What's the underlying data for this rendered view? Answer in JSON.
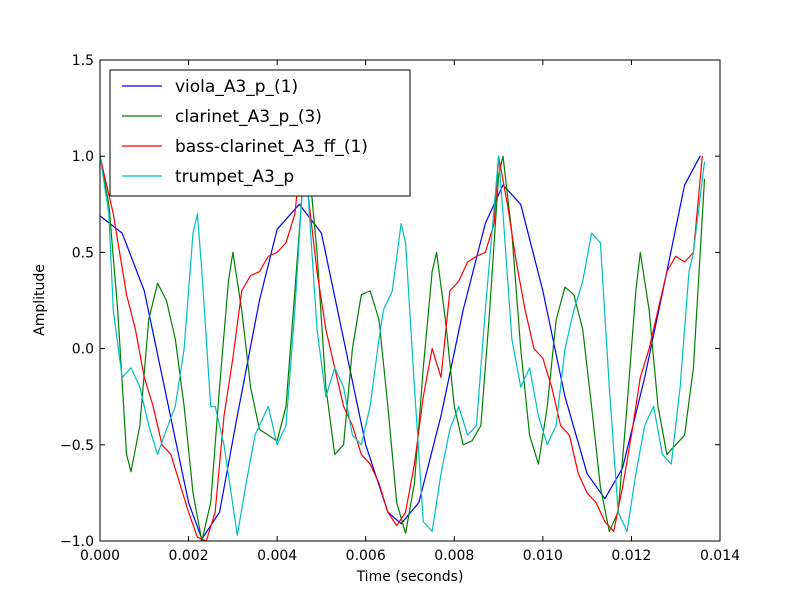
{
  "chart_data": {
    "type": "line",
    "title": "",
    "xlabel": "Time (seconds)",
    "ylabel": "Amplitude",
    "xlim": [
      0.0,
      0.014
    ],
    "ylim": [
      -1.0,
      1.5
    ],
    "xticks": [
      0.0,
      0.002,
      0.004,
      0.006,
      0.008,
      0.01,
      0.012,
      0.014
    ],
    "xtick_labels": [
      "0.000",
      "0.002",
      "0.004",
      "0.006",
      "0.008",
      "0.010",
      "0.012",
      "0.014"
    ],
    "yticks": [
      -1.0,
      -0.5,
      0.0,
      0.5,
      1.0,
      1.5
    ],
    "ytick_labels": [
      "−1.0",
      "−0.5",
      "0.0",
      "0.5",
      "1.0",
      "1.5"
    ],
    "grid": false,
    "legend_position": "top-left",
    "series": [
      {
        "name": "viola_A3_p_(1)",
        "color": "#0000ff",
        "points": [
          [
            0.0,
            0.69
          ],
          [
            0.0005,
            0.6
          ],
          [
            0.001,
            0.3
          ],
          [
            0.0015,
            -0.25
          ],
          [
            0.002,
            -0.8
          ],
          [
            0.0023,
            -0.99
          ],
          [
            0.0027,
            -0.85
          ],
          [
            0.0031,
            -0.35
          ],
          [
            0.0036,
            0.25
          ],
          [
            0.004,
            0.62
          ],
          [
            0.0045,
            0.75
          ],
          [
            0.005,
            0.6
          ],
          [
            0.0055,
            0.05
          ],
          [
            0.006,
            -0.5
          ],
          [
            0.0065,
            -0.85
          ],
          [
            0.0068,
            -0.91
          ],
          [
            0.0072,
            -0.8
          ],
          [
            0.0077,
            -0.35
          ],
          [
            0.0082,
            0.2
          ],
          [
            0.0087,
            0.65
          ],
          [
            0.0091,
            0.85
          ],
          [
            0.0095,
            0.75
          ],
          [
            0.01,
            0.3
          ],
          [
            0.0105,
            -0.25
          ],
          [
            0.011,
            -0.65
          ],
          [
            0.0114,
            -0.78
          ],
          [
            0.0118,
            -0.62
          ],
          [
            0.0123,
            -0.15
          ],
          [
            0.0128,
            0.4
          ],
          [
            0.0132,
            0.85
          ],
          [
            0.01355,
            1.0
          ]
        ]
      },
      {
        "name": "clarinet_A3_p_(3)",
        "color": "#008000",
        "points": [
          [
            0.0,
            1.0
          ],
          [
            0.0002,
            0.75
          ],
          [
            0.0004,
            0.2
          ],
          [
            0.0006,
            -0.55
          ],
          [
            0.0007,
            -0.64
          ],
          [
            0.0009,
            -0.4
          ],
          [
            0.0011,
            0.15
          ],
          [
            0.0013,
            0.34
          ],
          [
            0.0015,
            0.25
          ],
          [
            0.0017,
            0.05
          ],
          [
            0.0019,
            -0.3
          ],
          [
            0.0021,
            -0.75
          ],
          [
            0.0023,
            -1.0
          ],
          [
            0.0025,
            -0.8
          ],
          [
            0.0027,
            -0.2
          ],
          [
            0.0029,
            0.35
          ],
          [
            0.003,
            0.5
          ],
          [
            0.0032,
            0.2
          ],
          [
            0.0034,
            -0.2
          ],
          [
            0.0036,
            -0.42
          ],
          [
            0.0038,
            -0.45
          ],
          [
            0.004,
            -0.48
          ],
          [
            0.0042,
            -0.3
          ],
          [
            0.0044,
            0.3
          ],
          [
            0.0046,
            0.92
          ],
          [
            0.0047,
            1.0
          ],
          [
            0.0049,
            0.5
          ],
          [
            0.0051,
            -0.2
          ],
          [
            0.0053,
            -0.55
          ],
          [
            0.0055,
            -0.5
          ],
          [
            0.0057,
            0.0
          ],
          [
            0.0059,
            0.28
          ],
          [
            0.0061,
            0.3
          ],
          [
            0.0063,
            0.15
          ],
          [
            0.0065,
            -0.3
          ],
          [
            0.0067,
            -0.8
          ],
          [
            0.0069,
            -0.96
          ],
          [
            0.0071,
            -0.7
          ],
          [
            0.0073,
            -0.1
          ],
          [
            0.0075,
            0.4
          ],
          [
            0.0076,
            0.5
          ],
          [
            0.0078,
            0.15
          ],
          [
            0.008,
            -0.3
          ],
          [
            0.0082,
            -0.5
          ],
          [
            0.0084,
            -0.48
          ],
          [
            0.0086,
            -0.4
          ],
          [
            0.0088,
            0.2
          ],
          [
            0.009,
            0.9
          ],
          [
            0.0091,
            1.0
          ],
          [
            0.0093,
            0.6
          ],
          [
            0.0095,
            0.0
          ],
          [
            0.0097,
            -0.45
          ],
          [
            0.0099,
            -0.6
          ],
          [
            0.0101,
            -0.3
          ],
          [
            0.0103,
            0.15
          ],
          [
            0.0105,
            0.32
          ],
          [
            0.0107,
            0.28
          ],
          [
            0.0109,
            0.1
          ],
          [
            0.0111,
            -0.3
          ],
          [
            0.0113,
            -0.72
          ],
          [
            0.0115,
            -0.95
          ],
          [
            0.0117,
            -0.85
          ],
          [
            0.0119,
            -0.3
          ],
          [
            0.0121,
            0.3
          ],
          [
            0.0122,
            0.5
          ],
          [
            0.0124,
            0.2
          ],
          [
            0.0126,
            -0.3
          ],
          [
            0.0128,
            -0.55
          ],
          [
            0.013,
            -0.5
          ],
          [
            0.0132,
            -0.45
          ],
          [
            0.0134,
            -0.1
          ],
          [
            0.01365,
            0.88
          ]
        ]
      },
      {
        "name": "bass-clarinet_A3_ff_(1)",
        "color": "#ff0000",
        "points": [
          [
            0.0,
            1.0
          ],
          [
            0.0003,
            0.7
          ],
          [
            0.0006,
            0.28
          ],
          [
            0.0008,
            0.1
          ],
          [
            0.001,
            -0.15
          ],
          [
            0.0012,
            -0.3
          ],
          [
            0.0014,
            -0.5
          ],
          [
            0.0016,
            -0.55
          ],
          [
            0.0018,
            -0.7
          ],
          [
            0.002,
            -0.85
          ],
          [
            0.0022,
            -0.98
          ],
          [
            0.0024,
            -1.0
          ],
          [
            0.0026,
            -0.85
          ],
          [
            0.0028,
            -0.35
          ],
          [
            0.003,
            -0.05
          ],
          [
            0.0032,
            0.3
          ],
          [
            0.0034,
            0.38
          ],
          [
            0.0036,
            0.4
          ],
          [
            0.0038,
            0.48
          ],
          [
            0.004,
            0.5
          ],
          [
            0.0042,
            0.55
          ],
          [
            0.0044,
            0.7
          ],
          [
            0.0045,
            0.92
          ],
          [
            0.0047,
            0.8
          ],
          [
            0.0049,
            0.4
          ],
          [
            0.0051,
            0.1
          ],
          [
            0.0053,
            -0.1
          ],
          [
            0.0055,
            -0.3
          ],
          [
            0.0057,
            -0.4
          ],
          [
            0.0059,
            -0.55
          ],
          [
            0.0061,
            -0.6
          ],
          [
            0.0063,
            -0.7
          ],
          [
            0.0065,
            -0.85
          ],
          [
            0.0067,
            -0.92
          ],
          [
            0.0069,
            -0.85
          ],
          [
            0.0071,
            -0.6
          ],
          [
            0.0073,
            -0.25
          ],
          [
            0.0075,
            0.0
          ],
          [
            0.0077,
            -0.15
          ],
          [
            0.0079,
            0.3
          ],
          [
            0.0081,
            0.35
          ],
          [
            0.0083,
            0.45
          ],
          [
            0.0085,
            0.48
          ],
          [
            0.0087,
            0.5
          ],
          [
            0.0089,
            0.65
          ],
          [
            0.009,
            1.0
          ],
          [
            0.0092,
            0.75
          ],
          [
            0.0094,
            0.45
          ],
          [
            0.0096,
            0.2
          ],
          [
            0.0098,
            0.0
          ],
          [
            0.01,
            -0.05
          ],
          [
            0.0102,
            -0.2
          ],
          [
            0.0104,
            -0.4
          ],
          [
            0.0106,
            -0.45
          ],
          [
            0.0108,
            -0.65
          ],
          [
            0.011,
            -0.75
          ],
          [
            0.0112,
            -0.8
          ],
          [
            0.0114,
            -0.9
          ],
          [
            0.0116,
            -0.95
          ],
          [
            0.0118,
            -0.72
          ],
          [
            0.012,
            -0.45
          ],
          [
            0.0122,
            -0.15
          ],
          [
            0.0124,
            0.0
          ],
          [
            0.0126,
            0.2
          ],
          [
            0.0128,
            0.4
          ],
          [
            0.013,
            0.48
          ],
          [
            0.0132,
            0.45
          ],
          [
            0.0134,
            0.5
          ],
          [
            0.0136,
            1.0
          ]
        ]
      },
      {
        "name": "trumpet_A3_p",
        "color": "#00bfbf",
        "points": [
          [
            0.0,
            1.0
          ],
          [
            0.0002,
            0.7
          ],
          [
            0.0003,
            0.2
          ],
          [
            0.0005,
            -0.15
          ],
          [
            0.0007,
            -0.1
          ],
          [
            0.0009,
            -0.2
          ],
          [
            0.0011,
            -0.4
          ],
          [
            0.0013,
            -0.55
          ],
          [
            0.0015,
            -0.42
          ],
          [
            0.0017,
            -0.3
          ],
          [
            0.0019,
            0.0
          ],
          [
            0.0021,
            0.6
          ],
          [
            0.0022,
            0.7
          ],
          [
            0.0023,
            0.4
          ],
          [
            0.0025,
            -0.3
          ],
          [
            0.0026,
            -0.3
          ],
          [
            0.0028,
            -0.5
          ],
          [
            0.0031,
            -0.97
          ],
          [
            0.0033,
            -0.7
          ],
          [
            0.0035,
            -0.45
          ],
          [
            0.0038,
            -0.3
          ],
          [
            0.004,
            -0.5
          ],
          [
            0.0042,
            -0.4
          ],
          [
            0.0044,
            0.2
          ],
          [
            0.0046,
            0.95
          ],
          [
            0.0047,
            0.8
          ],
          [
            0.0049,
            0.1
          ],
          [
            0.0051,
            -0.25
          ],
          [
            0.0053,
            -0.1
          ],
          [
            0.0055,
            -0.2
          ],
          [
            0.0057,
            -0.45
          ],
          [
            0.0059,
            -0.5
          ],
          [
            0.0061,
            -0.3
          ],
          [
            0.0063,
            0.05
          ],
          [
            0.0064,
            0.2
          ],
          [
            0.0066,
            0.3
          ],
          [
            0.0068,
            0.65
          ],
          [
            0.0069,
            0.55
          ],
          [
            0.0071,
            -0.2
          ],
          [
            0.0073,
            -0.9
          ],
          [
            0.0075,
            -0.95
          ],
          [
            0.0077,
            -0.65
          ],
          [
            0.0079,
            -0.42
          ],
          [
            0.0081,
            -0.3
          ],
          [
            0.0083,
            -0.45
          ],
          [
            0.0085,
            -0.4
          ],
          [
            0.0087,
            0.2
          ],
          [
            0.009,
            1.0
          ],
          [
            0.0091,
            0.7
          ],
          [
            0.0093,
            0.05
          ],
          [
            0.0095,
            -0.2
          ],
          [
            0.0097,
            -0.1
          ],
          [
            0.0099,
            -0.35
          ],
          [
            0.0101,
            -0.5
          ],
          [
            0.0103,
            -0.4
          ],
          [
            0.0105,
            0.0
          ],
          [
            0.0107,
            0.2
          ],
          [
            0.0109,
            0.35
          ],
          [
            0.0111,
            0.6
          ],
          [
            0.0113,
            0.55
          ],
          [
            0.0115,
            -0.2
          ],
          [
            0.0117,
            -0.85
          ],
          [
            0.0119,
            -0.95
          ],
          [
            0.0121,
            -0.65
          ],
          [
            0.0123,
            -0.4
          ],
          [
            0.0125,
            -0.3
          ],
          [
            0.0127,
            -0.55
          ],
          [
            0.0129,
            -0.6
          ],
          [
            0.0131,
            -0.2
          ],
          [
            0.0133,
            0.4
          ],
          [
            0.0134,
            0.5
          ],
          [
            0.01365,
            0.97
          ]
        ]
      }
    ]
  }
}
